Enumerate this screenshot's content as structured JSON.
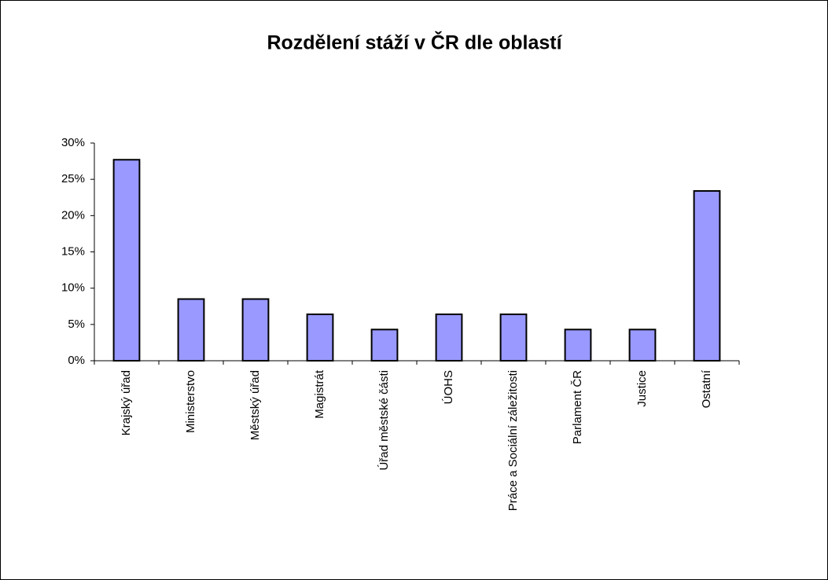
{
  "chart_data": {
    "type": "bar",
    "title": "Rozdělení stáží v ČR dle oblastí",
    "categories": [
      "Krajský úřad",
      "Ministerstvo",
      "Městský úřad",
      "Magistrát",
      "Úřad městské části",
      "ÚOHS",
      "Práce a Sociální záležitosti",
      "Parlament ČR",
      "Justice",
      "Ostatní"
    ],
    "values": [
      27.7,
      8.5,
      8.5,
      6.4,
      4.3,
      6.4,
      6.4,
      4.3,
      4.3,
      23.4
    ],
    "color": "#9999ff",
    "ylim": [
      0,
      30
    ],
    "yticks": [
      {
        "value": 0,
        "label": "0%"
      },
      {
        "value": 5,
        "label": "5%"
      },
      {
        "value": 10,
        "label": "10%"
      },
      {
        "value": 15,
        "label": "15%"
      },
      {
        "value": 20,
        "label": "20%"
      },
      {
        "value": 25,
        "label": "25%"
      },
      {
        "value": 30,
        "label": "30%"
      }
    ],
    "grid": false
  }
}
